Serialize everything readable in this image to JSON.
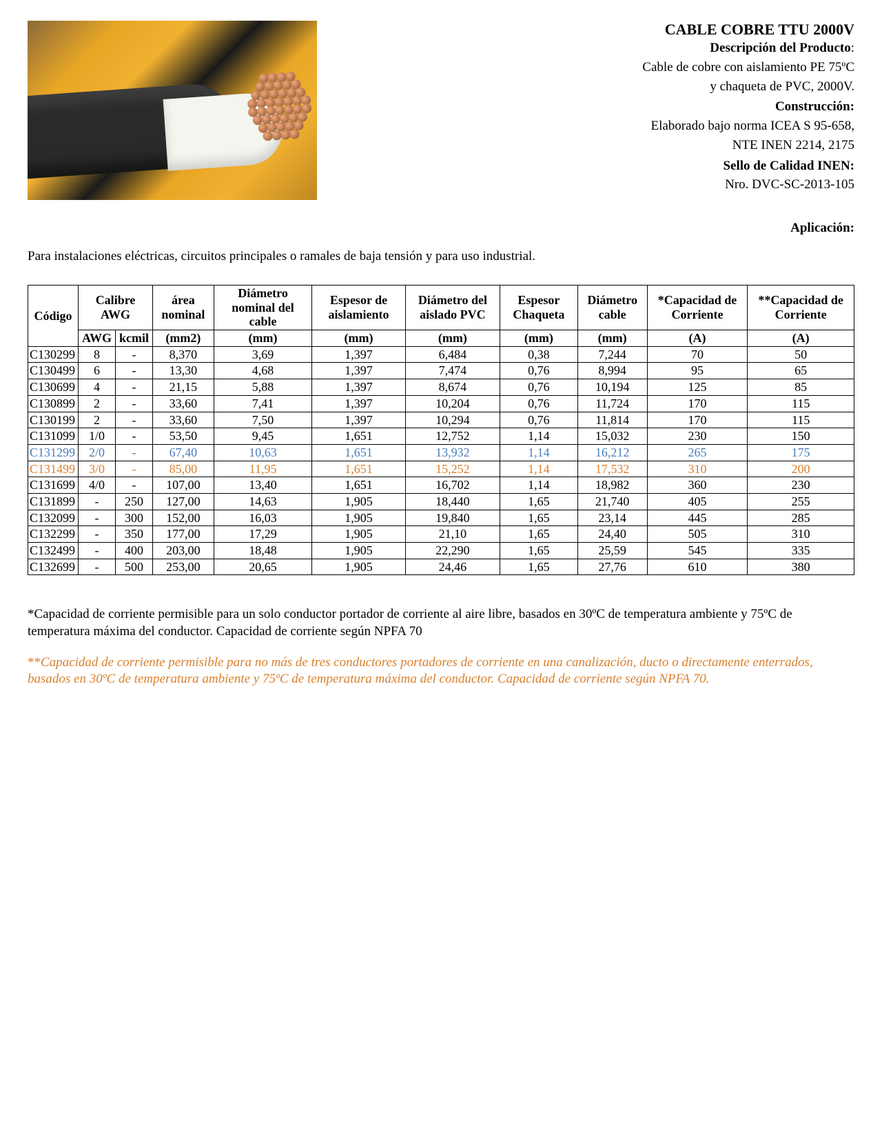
{
  "header": {
    "title": "CABLE COBRE TTU 2000V",
    "desc_label": "Descripción del Producto",
    "desc_text1": "Cable de cobre con aislamiento PE 75ºC",
    "desc_text2": "y chaqueta de PVC, 2000V.",
    "constr_label": "Construcción:",
    "constr_text1": "Elaborado bajo norma ICEA S 95-658,",
    "constr_text2": "NTE INEN 2214, 2175",
    "sello_label": "Sello de Calidad INEN:",
    "sello_text": "Nro. DVC-SC-2013-105",
    "aplic_label": "Aplicación:",
    "aplic_text": "Para instalaciones eléctricas, circuitos principales o ramales de baja tensión y para uso industrial."
  },
  "table": {
    "headers1": [
      "Código",
      "Calibre AWG",
      "área nominal",
      "Diámetro nominal del cable",
      "Espesor de aislamiento",
      "Diámetro del aislado PVC",
      "Espesor Chaqueta",
      "Diámetro cable",
      "*Capacidad de Corriente",
      "**Capacidad de Corriente"
    ],
    "sub_awg": "AWG",
    "sub_kcmil": "kcmil",
    "units": [
      "(mm2)",
      "(mm)",
      "(mm)",
      "(mm)",
      "(mm)",
      "(mm)",
      "(A)",
      "(A)"
    ],
    "rows": [
      {
        "c": "C130299",
        "awg": "8",
        "kc": "-",
        "a": "8,370",
        "d1": "3,69",
        "e1": "1,397",
        "d2": "6,484",
        "ec": "0,38",
        "dc": "7,244",
        "cap1": "70",
        "cap2": "50",
        "cls": ""
      },
      {
        "c": "C130499",
        "awg": "6",
        "kc": "-",
        "a": "13,30",
        "d1": "4,68",
        "e1": "1,397",
        "d2": "7,474",
        "ec": "0,76",
        "dc": "8,994",
        "cap1": "95",
        "cap2": "65",
        "cls": ""
      },
      {
        "c": "C130699",
        "awg": "4",
        "kc": "-",
        "a": "21,15",
        "d1": "5,88",
        "e1": "1,397",
        "d2": "8,674",
        "ec": "0,76",
        "dc": "10,194",
        "cap1": "125",
        "cap2": "85",
        "cls": ""
      },
      {
        "c": "C130899",
        "awg": "2",
        "kc": "-",
        "a": "33,60",
        "d1": "7,41",
        "e1": "1,397",
        "d2": "10,204",
        "ec": "0,76",
        "dc": "11,724",
        "cap1": "170",
        "cap2": "115",
        "cls": ""
      },
      {
        "c": "C130199",
        "awg": "2",
        "kc": "-",
        "a": "33,60",
        "d1": "7,50",
        "e1": "1,397",
        "d2": "10,294",
        "ec": "0,76",
        "dc": "11,814",
        "cap1": "170",
        "cap2": "115",
        "cls": ""
      },
      {
        "c": "C131099",
        "awg": "1/0",
        "kc": "-",
        "a": "53,50",
        "d1": "9,45",
        "e1": "1,651",
        "d2": "12,752",
        "ec": "1,14",
        "dc": "15,032",
        "cap1": "230",
        "cap2": "150",
        "cls": ""
      },
      {
        "c": "C131299",
        "awg": "2/0",
        "kc": "-",
        "a": "67,40",
        "d1": "10,63",
        "e1": "1,651",
        "d2": "13,932",
        "ec": "1,14",
        "dc": "16,212",
        "cap1": "265",
        "cap2": "175",
        "cls": "row-blue"
      },
      {
        "c": "C131499",
        "awg": "3/0",
        "kc": "-",
        "a": "85,00",
        "d1": "11,95",
        "e1": "1,651",
        "d2": "15,252",
        "ec": "1,14",
        "dc": "17,532",
        "cap1": "310",
        "cap2": "200",
        "cls": "row-orange"
      },
      {
        "c": "C131699",
        "awg": "4/0",
        "kc": "-",
        "a": "107,00",
        "d1": "13,40",
        "e1": "1,651",
        "d2": "16,702",
        "ec": "1,14",
        "dc": "18,982",
        "cap1": "360",
        "cap2": "230",
        "cls": ""
      },
      {
        "c": "C131899",
        "awg": "-",
        "kc": "250",
        "a": "127,00",
        "d1": "14,63",
        "e1": "1,905",
        "d2": "18,440",
        "ec": "1,65",
        "dc": "21,740",
        "cap1": "405",
        "cap2": "255",
        "cls": ""
      },
      {
        "c": "C132099",
        "awg": "-",
        "kc": "300",
        "a": "152,00",
        "d1": "16,03",
        "e1": "1,905",
        "d2": "19,840",
        "ec": "1,65",
        "dc": "23,14",
        "cap1": "445",
        "cap2": "285",
        "cls": ""
      },
      {
        "c": "C132299",
        "awg": "-",
        "kc": "350",
        "a": "177,00",
        "d1": "17,29",
        "e1": "1,905",
        "d2": "21,10",
        "ec": "1,65",
        "dc": "24,40",
        "cap1": "505",
        "cap2": "310",
        "cls": ""
      },
      {
        "c": "C132499",
        "awg": "-",
        "kc": "400",
        "a": "203,00",
        "d1": "18,48",
        "e1": "1,905",
        "d2": "22,290",
        "ec": "1,65",
        "dc": "25,59",
        "cap1": "545",
        "cap2": "335",
        "cls": ""
      },
      {
        "c": "C132699",
        "awg": "-",
        "kc": "500",
        "a": "253,00",
        "d1": "20,65",
        "e1": "1,905",
        "d2": "24,46",
        "ec": "1,65",
        "dc": "27,76",
        "cap1": "610",
        "cap2": "380",
        "cls": ""
      }
    ]
  },
  "footnotes": {
    "f1": "*Capacidad de corriente permisible para un solo conductor portador de corriente al aire libre, basados en 30ºC de temperatura ambiente y 75ºC de temperatura máxima del conductor. Capacidad de corriente según NPFA 70",
    "f2_stars": "**",
    "f2": "Capacidad de corriente permisible para no más de tres conductores portadores de corriente en una canalización, ducto o directamente enterrados, basados en 30ºC de temperatura ambiente y 75ºC de temperatura máxima del conductor. Capacidad de corriente según NPFA 70."
  },
  "colors": {
    "row_blue": "#4a7db8",
    "row_orange": "#d9802e"
  }
}
